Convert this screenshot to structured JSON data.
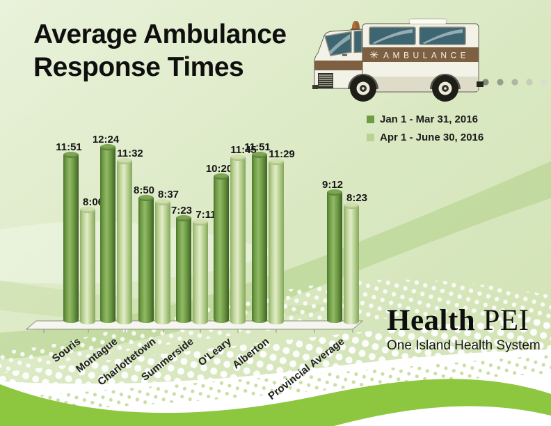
{
  "title": {
    "line1": "Average Ambulance",
    "line2": "Response Times"
  },
  "ambulance": {
    "banner_star": "✳",
    "banner_text": "AMBULANCE"
  },
  "logo": {
    "brand_bold": "Health",
    "brand_regular": "PEI",
    "tagline": "One Island Health System"
  },
  "colors": {
    "ribbon_green": "#8dc63f",
    "banner_brown": "#7d5f41",
    "background_green": "#d9e8c0",
    "series_dark": "#6d9c43",
    "series_light": "#b7d291"
  },
  "chart_data": {
    "type": "bar",
    "title": "Average Ambulance Response Times",
    "categories": [
      "Souris",
      "Montague",
      "Charlottetown",
      "Summerside",
      "O'Leary",
      "Alberton",
      "Provincial Average"
    ],
    "series": [
      {
        "name": "Jan 1 - Mar 31, 2016",
        "color": "#6d9c43",
        "values": [
          "11:51",
          "12:24",
          "8:50",
          "7:23",
          "10:20",
          "11:51",
          "9:12"
        ],
        "values_seconds": [
          711,
          744,
          530,
          443,
          620,
          711,
          552
        ]
      },
      {
        "name": "Apr 1 - June 30, 2016",
        "color": "#b7d291",
        "values": [
          "8:06",
          "11:32",
          "8:37",
          "7:11",
          "11:45",
          "11:29",
          "8:23"
        ],
        "values_seconds": [
          486,
          692,
          517,
          431,
          705,
          689,
          503
        ]
      }
    ],
    "value_format": "mm:ss",
    "unit": "minutes:seconds",
    "xlabel": "",
    "ylabel": "",
    "gridlines": false,
    "data_labels": true,
    "legend_position": "top-right"
  }
}
